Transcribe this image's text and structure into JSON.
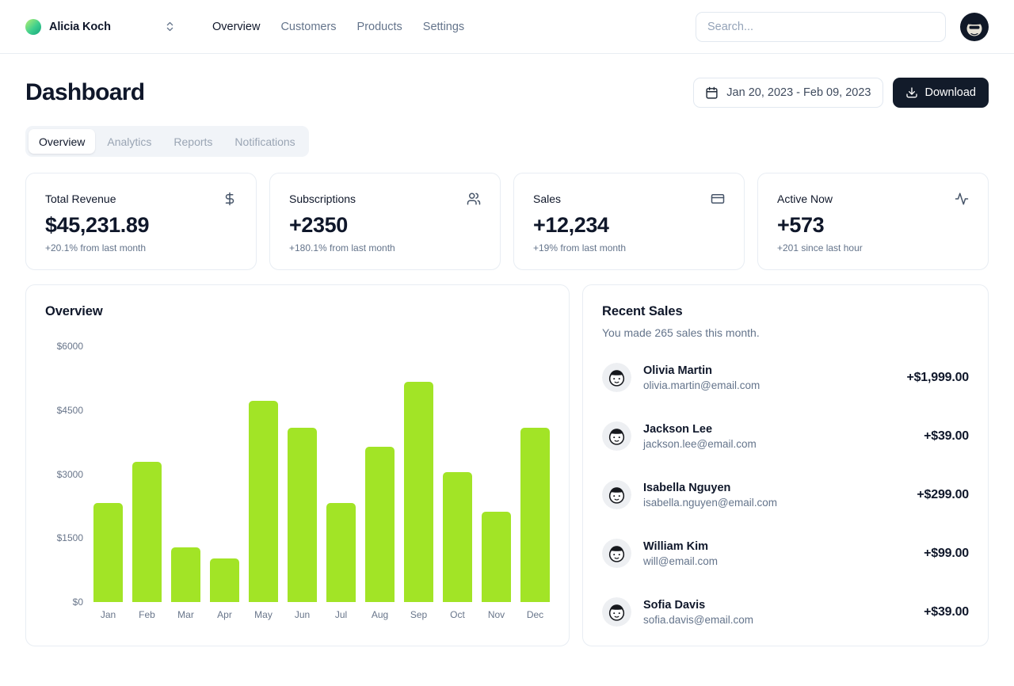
{
  "header": {
    "team_switcher": {
      "name": "Alicia Koch",
      "icon": "chevrons-up-down-icon",
      "avatar_icon": "team-gradient-dot"
    },
    "nav": {
      "items": [
        {
          "label": "Overview",
          "active": true
        },
        {
          "label": "Customers",
          "active": false
        },
        {
          "label": "Products",
          "active": false
        },
        {
          "label": "Settings",
          "active": false
        }
      ]
    },
    "search": {
      "placeholder": "Search..."
    },
    "user_avatar_icon": "user-avatar-illustration"
  },
  "page": {
    "title": "Dashboard",
    "date_range": {
      "label": "Jan 20, 2023 - Feb 09, 2023",
      "icon": "calendar-icon"
    },
    "download": {
      "label": "Download",
      "icon": "download-icon"
    },
    "tabs": {
      "items": [
        {
          "label": "Overview",
          "active": true
        },
        {
          "label": "Analytics",
          "active": false
        },
        {
          "label": "Reports",
          "active": false
        },
        {
          "label": "Notifications",
          "active": false
        }
      ]
    }
  },
  "stats": {
    "cards": [
      {
        "title": "Total Revenue",
        "icon": "dollar-sign-icon",
        "value": "$45,231.89",
        "change": "+20.1% from last month"
      },
      {
        "title": "Subscriptions",
        "icon": "users-icon",
        "value": "+2350",
        "change": "+180.1% from last month"
      },
      {
        "title": "Sales",
        "icon": "credit-card-icon",
        "value": "+12,234",
        "change": "+19% from last month"
      },
      {
        "title": "Active Now",
        "icon": "activity-icon",
        "value": "+573",
        "change": "+201 since last hour"
      }
    ]
  },
  "chart_data": {
    "type": "bar",
    "title": "Overview",
    "categories": [
      "Jan",
      "Feb",
      "Mar",
      "Apr",
      "May",
      "Jun",
      "Jul",
      "Aug",
      "Sep",
      "Oct",
      "Nov",
      "Dec"
    ],
    "values": [
      2320,
      3290,
      1290,
      1030,
      4710,
      4090,
      2330,
      3640,
      5160,
      3040,
      2120,
      4090
    ],
    "xlabel": "",
    "ylabel": "",
    "ylim": [
      0,
      6000
    ],
    "ytick_labels": [
      "$6000",
      "$4500",
      "$3000",
      "$1500",
      "$0"
    ],
    "grid": false,
    "legend": false,
    "bar_color": "#a2e426"
  },
  "recent_sales": {
    "title": "Recent Sales",
    "subtitle": "You made 265 sales this month.",
    "items": [
      {
        "name": "Olivia Martin",
        "email": "olivia.martin@email.com",
        "amount": "+$1,999.00"
      },
      {
        "name": "Jackson Lee",
        "email": "jackson.lee@email.com",
        "amount": "+$39.00"
      },
      {
        "name": "Isabella Nguyen",
        "email": "isabella.nguyen@email.com",
        "amount": "+$299.00"
      },
      {
        "name": "William Kim",
        "email": "will@email.com",
        "amount": "+$99.00"
      },
      {
        "name": "Sofia Davis",
        "email": "sofia.davis@email.com",
        "amount": "+$39.00"
      }
    ]
  },
  "colors": {
    "accent_lime": "#a2e426",
    "primary_dark": "#121b2a",
    "muted_text": "#64748b",
    "border": "#e8edf3"
  }
}
